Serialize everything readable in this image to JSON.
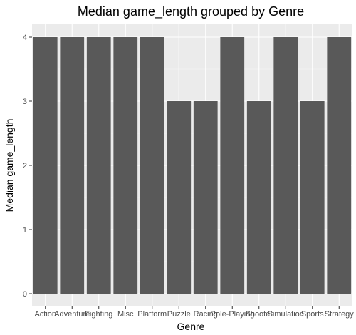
{
  "chart_data": {
    "type": "bar",
    "title": "Median game_length grouped by Genre",
    "xlabel": "Genre",
    "ylabel": "Median game_length",
    "categories": [
      "Action",
      "Adventure",
      "Fighting",
      "Misc",
      "Platform",
      "Puzzle",
      "Racing",
      "Role-Playing",
      "Shooter",
      "Simulation",
      "Sports",
      "Strategy"
    ],
    "values": [
      4,
      4,
      4,
      4,
      4,
      3,
      3,
      4,
      3,
      4,
      3,
      4
    ],
    "ylim": [
      0,
      4
    ],
    "yticks": [
      "0",
      "1",
      "2",
      "3",
      "4"
    ],
    "bar_color": "#595959",
    "panel_color": "#ebebeb",
    "grid": true
  }
}
